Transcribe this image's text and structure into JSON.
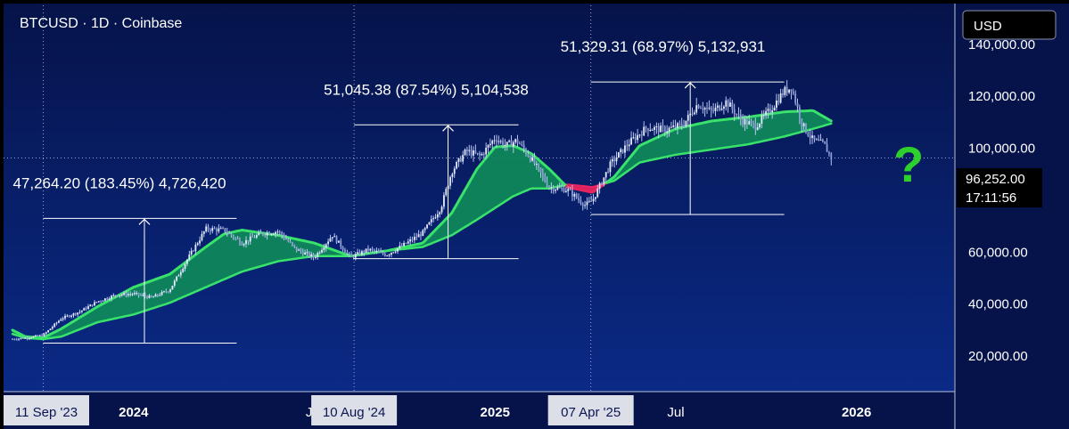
{
  "symbol_title": "BTCUSD · 1D · Coinbase",
  "currency_button": "USD",
  "question_mark": "?",
  "price_tag": {
    "price": "96,252.00",
    "countdown": "17:11:56"
  },
  "colors": {
    "background_top": "#06134a",
    "background_bottom": "#0a2a86",
    "band_bull": "#0f8a5a",
    "band_bear": "#e8245f",
    "ema_fast": "#39e26a",
    "question": "#2ed12b",
    "candle": "#c9d4ff"
  },
  "chart_data": {
    "type": "line",
    "title": "BTCUSD · 1D · Coinbase",
    "xlabel": "",
    "ylabel": "",
    "x_ticks": [
      "2024",
      "Jul",
      "2025",
      "Jul",
      "2026"
    ],
    "x_tick_years": [
      2024.0,
      2024.5,
      2025.0,
      2025.5,
      2026.0
    ],
    "x_highlight_labels": [
      "11 Sep '23",
      "10 Aug '24",
      "07 Apr '25"
    ],
    "x_highlight_years": [
      2023.695,
      2024.61,
      2025.265
    ],
    "y_ticks": [
      20000,
      40000,
      60000,
      80000,
      100000,
      120000,
      140000
    ],
    "y_tick_labels": [
      "20,000.00",
      "40,000.00",
      "60,000.00",
      "80,000.00",
      "100,000.00",
      "120,000.00",
      "140,000.00"
    ],
    "ylim": [
      7000,
      155000
    ],
    "xlim": [
      2023.665,
      2026.245
    ],
    "grid": false,
    "last_price": 96252,
    "series": [
      {
        "kind": "price",
        "x": [
          2023.665,
          2023.7,
          2023.75,
          2023.8,
          2023.85,
          2023.9,
          2023.95,
          2024.0,
          2024.05,
          2024.1,
          2024.15,
          2024.2,
          2024.25,
          2024.3,
          2024.35,
          2024.4,
          2024.45,
          2024.5,
          2024.55,
          2024.6,
          2024.65,
          2024.7,
          2024.75,
          2024.8,
          2024.85,
          2024.88,
          2024.92,
          2024.96,
          2025.0,
          2025.03,
          2025.06,
          2025.1,
          2025.15,
          2025.2,
          2025.25,
          2025.27,
          2025.32,
          2025.37,
          2025.42,
          2025.47,
          2025.52,
          2025.56,
          2025.6,
          2025.64,
          2025.68,
          2025.72,
          2025.76,
          2025.8,
          2025.82,
          2025.85,
          2025.88,
          2025.91,
          2025.93
        ],
        "y": [
          26500,
          27000,
          28000,
          34500,
          37000,
          41000,
          43500,
          44000,
          42500,
          45500,
          57500,
          69000,
          68500,
          63500,
          67000,
          68000,
          61000,
          58000,
          66500,
          58000,
          61000,
          59000,
          63000,
          67500,
          77000,
          91000,
          99000,
          97000,
          104000,
          101000,
          103000,
          96000,
          85000,
          84000,
          78000,
          80000,
          94000,
          102000,
          108000,
          107000,
          109000,
          117000,
          114000,
          118000,
          111000,
          108500,
          114500,
          122000,
          123500,
          109000,
          103000,
          101500,
          96252
        ]
      },
      {
        "kind": "ema_fast",
        "x": [
          2023.665,
          2023.7,
          2023.75,
          2023.8,
          2023.9,
          2024.0,
          2024.1,
          2024.2,
          2024.25,
          2024.3,
          2024.4,
          2024.5,
          2024.6,
          2024.7,
          2024.8,
          2024.88,
          2024.95,
          2025.0,
          2025.05,
          2025.1,
          2025.15,
          2025.2,
          2025.27,
          2025.33,
          2025.4,
          2025.5,
          2025.6,
          2025.7,
          2025.8,
          2025.88,
          2025.93
        ],
        "y": [
          30000,
          27500,
          27000,
          30500,
          39000,
          46500,
          51500,
          62000,
          67000,
          68500,
          66500,
          63500,
          58500,
          60500,
          63500,
          75000,
          92000,
          100500,
          101000,
          98000,
          92000,
          85000,
          83000,
          89000,
          101000,
          107500,
          110500,
          112000,
          114000,
          114500,
          110500
        ]
      },
      {
        "kind": "ema_slow",
        "x": [
          2023.665,
          2023.7,
          2023.75,
          2023.8,
          2023.9,
          2024.0,
          2024.1,
          2024.2,
          2024.3,
          2024.4,
          2024.5,
          2024.6,
          2024.7,
          2024.8,
          2024.88,
          2024.95,
          2025.0,
          2025.05,
          2025.1,
          2025.15,
          2025.2,
          2025.27,
          2025.33,
          2025.4,
          2025.5,
          2025.6,
          2025.7,
          2025.8,
          2025.88,
          2025.93
        ],
        "y": [
          28500,
          27000,
          26500,
          27500,
          33000,
          36000,
          40500,
          46500,
          52500,
          56500,
          58500,
          58500,
          60500,
          62000,
          66500,
          72500,
          77000,
          81500,
          84500,
          84500,
          86000,
          85000,
          87500,
          94500,
          97500,
          99500,
          101500,
          104500,
          107500,
          109500
        ]
      }
    ],
    "annotations": [
      {
        "text": "47,264.20 (183.45%) 4,726,420",
        "x_start": 2023.75,
        "x_end": 2024.285,
        "y_low": 25000,
        "y_high": 73000,
        "arrow_x": 2024.03
      },
      {
        "text": "51,045.38 (87.54%) 5,104,538",
        "x_start": 2024.61,
        "x_end": 2025.065,
        "y_low": 57500,
        "y_high": 109000,
        "arrow_x": 2024.87
      },
      {
        "text": "51,329.31 (68.97%) 5,132,931",
        "x_start": 2025.265,
        "x_end": 2025.8,
        "y_low": 74500,
        "y_high": 125500,
        "arrow_x": 2025.54
      }
    ],
    "dotted_verticals": [
      2023.75,
      2024.61,
      2025.265
    ]
  }
}
